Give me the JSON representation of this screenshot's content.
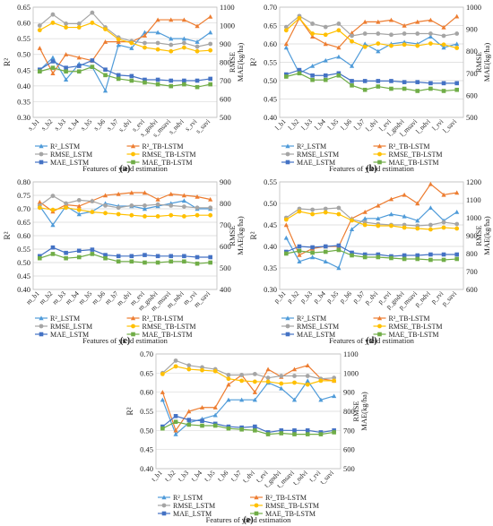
{
  "colors": {
    "R2_LSTM": "#4f9bd9",
    "R2_TB_LSTM": "#ed7d31",
    "RMSE_LSTM": "#a5a5a5",
    "RMSE_TB_LSTM": "#ffc000",
    "MAE_LSTM": "#4472c4",
    "MAE_TB_LSTM": "#70ad47"
  },
  "chart_data": [
    {
      "panel": "(a)",
      "type": "line",
      "xlabel": "Features of yield estimation",
      "ylabel_left": "R²",
      "ylabel_right": "RMSE MAE(kg/ha)",
      "ylim_left": [
        0.3,
        0.65
      ],
      "ylim_right": [
        500,
        1100
      ],
      "categories": [
        "s_b1",
        "s_b2",
        "s_b3",
        "s_b4",
        "s_b5",
        "s_b6",
        "s_b7",
        "s_dvi",
        "s_evi",
        "s_gndvi",
        "s_msavi",
        "s_ndvi",
        "s_rvi",
        "s_savi"
      ],
      "legend": [
        [
          "R²_LSTM",
          "R²_TB-LSTM"
        ],
        [
          "RMSE_LSTM",
          "RMSE_TB-LSTM"
        ],
        [
          "MAE_LSTM",
          "MAE_TB-LSTM"
        ]
      ],
      "series": [
        {
          "name": "R²_LSTM",
          "axis": "left",
          "values": [
            0.45,
            0.49,
            0.42,
            0.47,
            0.46,
            0.385,
            0.53,
            0.52,
            0.57,
            0.57,
            0.55,
            0.55,
            0.54,
            0.57
          ]
        },
        {
          "name": "R²_TB-LSTM",
          "axis": "left",
          "values": [
            0.52,
            0.44,
            0.5,
            0.49,
            0.48,
            0.54,
            0.54,
            0.54,
            0.56,
            0.61,
            0.61,
            0.61,
            0.59,
            0.62
          ]
        },
        {
          "name": "RMSE_LSTM",
          "axis": "right",
          "values": [
            1000,
            1060,
            1010,
            1010,
            1070,
            990,
            935,
            915,
            905,
            905,
            895,
            905,
            885,
            900
          ]
        },
        {
          "name": "RMSE_TB-LSTM",
          "axis": "right",
          "values": [
            975,
            1015,
            990,
            990,
            1015,
            980,
            925,
            905,
            880,
            870,
            860,
            880,
            860,
            865
          ]
        },
        {
          "name": "MAE_LSTM",
          "axis": "right",
          "values": [
            760,
            805,
            770,
            780,
            810,
            760,
            730,
            725,
            705,
            705,
            700,
            700,
            700,
            710
          ]
        },
        {
          "name": "MAE_TB-LSTM",
          "axis": "right",
          "values": [
            750,
            770,
            750,
            750,
            775,
            730,
            710,
            700,
            690,
            680,
            670,
            680,
            665,
            680
          ]
        }
      ]
    },
    {
      "panel": "(b)",
      "type": "line",
      "xlabel": "Features of yield estimation",
      "ylabel_left": "R²",
      "ylabel_right": "RMSE MAE(kg/ha)",
      "ylim_left": [
        0.4,
        0.7
      ],
      "ylim_right": [
        500,
        1000
      ],
      "categories": [
        "l_b1",
        "l_b2",
        "l_b3",
        "l_b4",
        "l_b5",
        "l_b6",
        "l_b7",
        "l_dvi",
        "l_evi",
        "l_gndvi",
        "l_msavi",
        "l_ndvi",
        "l_rvi",
        "l_savi"
      ],
      "legend": [
        [
          "R²_LSTM",
          "R²_TB-LSTM"
        ],
        [
          "RMSE_LSTM",
          "RMSE_TB-LSTM"
        ],
        [
          "MAE_LSTM",
          "MAE_TB-LSTM"
        ]
      ],
      "series": [
        {
          "name": "R²_LSTM",
          "axis": "left",
          "values": [
            0.59,
            0.52,
            0.54,
            0.555,
            0.565,
            0.54,
            0.6,
            0.58,
            0.6,
            0.605,
            0.6,
            0.62,
            0.59,
            0.6
          ]
        },
        {
          "name": "R²_TB-LSTM",
          "axis": "left",
          "values": [
            0.6,
            0.67,
            0.62,
            0.6,
            0.59,
            0.63,
            0.66,
            0.66,
            0.665,
            0.65,
            0.66,
            0.665,
            0.645,
            0.675
          ]
        },
        {
          "name": "RMSE_LSTM",
          "axis": "right",
          "values": [
            910,
            960,
            925,
            910,
            925,
            870,
            880,
            880,
            875,
            880,
            880,
            880,
            870,
            880
          ]
        },
        {
          "name": "RMSE_TB-LSTM",
          "axis": "right",
          "values": [
            895,
            950,
            880,
            875,
            895,
            845,
            820,
            835,
            825,
            830,
            825,
            835,
            830,
            815
          ]
        },
        {
          "name": "MAE_LSTM",
          "axis": "right",
          "values": [
            695,
            715,
            690,
            690,
            700,
            665,
            665,
            665,
            665,
            660,
            660,
            655,
            655,
            655
          ]
        },
        {
          "name": "MAE_TB-LSTM",
          "axis": "right",
          "values": [
            685,
            700,
            670,
            670,
            690,
            645,
            625,
            640,
            630,
            630,
            620,
            630,
            620,
            625
          ]
        }
      ]
    },
    {
      "panel": "(c)",
      "type": "line",
      "xlabel": "Features of yield estimation",
      "ylabel_left": "R²",
      "ylabel_right": "RMSE MAE(kg/ha)",
      "ylim_left": [
        0.4,
        0.8
      ],
      "ylim_right": [
        400,
        900
      ],
      "categories": [
        "m_b1",
        "m_b2",
        "m_b3",
        "m_b4",
        "m_b5",
        "m_b6",
        "m_b7",
        "m_dvi",
        "m_evi",
        "m_gndvi",
        "m_msavi",
        "m_ndvi",
        "m_rvi",
        "m_savi"
      ],
      "legend": [
        [
          "R²_LSTM",
          "R²_TB-LSTM"
        ],
        [
          "RMSE_LSTM",
          "RMSE_TB-LSTM"
        ],
        [
          "MAE_LSTM",
          "MAE_TB-LSTM"
        ]
      ],
      "series": [
        {
          "name": "R²_LSTM",
          "axis": "left",
          "values": [
            0.71,
            0.64,
            0.71,
            0.68,
            0.69,
            0.72,
            0.71,
            0.71,
            0.7,
            0.71,
            0.72,
            0.73,
            0.7,
            0.7
          ]
        },
        {
          "name": "R²_TB-LSTM",
          "axis": "left",
          "values": [
            0.725,
            0.69,
            0.715,
            0.71,
            0.73,
            0.75,
            0.755,
            0.76,
            0.76,
            0.735,
            0.755,
            0.75,
            0.745,
            0.735
          ]
        },
        {
          "name": "RMSE_LSTM",
          "axis": "right",
          "values": [
            790,
            835,
            800,
            815,
            810,
            790,
            780,
            790,
            790,
            795,
            790,
            785,
            780,
            780
          ]
        },
        {
          "name": "RMSE_TB-LSTM",
          "axis": "right",
          "values": [
            780,
            770,
            780,
            770,
            760,
            755,
            750,
            745,
            740,
            740,
            745,
            740,
            745,
            745
          ]
        },
        {
          "name": "MAE_LSTM",
          "axis": "right",
          "values": [
            555,
            595,
            570,
            580,
            585,
            560,
            555,
            555,
            560,
            555,
            555,
            555,
            550,
            550
          ]
        },
        {
          "name": "MAE_TB-LSTM",
          "axis": "right",
          "values": [
            545,
            565,
            545,
            550,
            565,
            545,
            530,
            530,
            525,
            525,
            530,
            530,
            520,
            525
          ]
        }
      ]
    },
    {
      "panel": "(d)",
      "type": "line",
      "xlabel": "Features of yield estimation",
      "ylabel_left": "R²",
      "ylabel_right": "RMSE MAE(kg/ha)",
      "ylim_left": [
        0.3,
        0.55
      ],
      "ylim_right": [
        600,
        1200
      ],
      "categories": [
        "p_b1",
        "p_b2",
        "p_b3",
        "p_b4",
        "p_b5",
        "p_b6",
        "p_b7",
        "p_dvi",
        "p_evi",
        "p_gndvi",
        "p_msavi",
        "p_ndvi",
        "p_rvi",
        "p_savi"
      ],
      "legend": [
        [
          "R²_LSTM",
          "R²_TB-LSTM"
        ],
        [
          "RMSE_LSTM",
          "RMSE_TB-LSTM"
        ],
        [
          "MAE_LSTM",
          "MAE_TB-LSTM"
        ]
      ],
      "series": [
        {
          "name": "R²_LSTM",
          "axis": "left",
          "values": [
            0.42,
            0.365,
            0.375,
            0.365,
            0.35,
            0.44,
            0.465,
            0.465,
            0.475,
            0.47,
            0.46,
            0.49,
            0.46,
            0.48
          ]
        },
        {
          "name": "R²_TB-LSTM",
          "axis": "left",
          "values": [
            0.45,
            0.38,
            0.395,
            0.4,
            0.4,
            0.465,
            0.48,
            0.495,
            0.51,
            0.52,
            0.5,
            0.545,
            0.52,
            0.525
          ]
        },
        {
          "name": "RMSE_LSTM",
          "axis": "right",
          "values": [
            1000,
            1050,
            1045,
            1050,
            1055,
            990,
            975,
            965,
            960,
            960,
            955,
            960,
            975,
            965
          ]
        },
        {
          "name": "RMSE_TB-LSTM",
          "axis": "right",
          "values": [
            990,
            1035,
            1020,
            1030,
            1020,
            985,
            960,
            955,
            955,
            945,
            940,
            935,
            945,
            940
          ]
        },
        {
          "name": "MAE_LSTM",
          "axis": "right",
          "values": [
            810,
            840,
            835,
            840,
            845,
            805,
            795,
            795,
            785,
            790,
            790,
            795,
            795,
            795
          ]
        },
        {
          "name": "MAE_TB-LSTM",
          "axis": "right",
          "values": [
            800,
            815,
            805,
            810,
            820,
            790,
            780,
            780,
            775,
            770,
            770,
            765,
            765,
            770
          ]
        }
      ]
    },
    {
      "panel": "(e)",
      "type": "line",
      "xlabel": "Features of yield estimation",
      "ylabel_left": "R²",
      "ylabel_right": "RMSE MAE(kg/ha)",
      "ylim_left": [
        0.4,
        0.7
      ],
      "ylim_right": [
        500,
        1100
      ],
      "categories": [
        "t_b1",
        "t_b2",
        "t_b3",
        "t_b4",
        "t_b5",
        "t_b6",
        "t_b7",
        "t_dvi",
        "t_evi",
        "t_gndvi",
        "t_msavi",
        "t_ndvi",
        "t_rvi",
        "t_savi"
      ],
      "legend": [
        [
          "R²_LSTM",
          "R²_TB-LSTM"
        ],
        [
          "RMSE_LSTM",
          "RMSE_TB-LSTM"
        ],
        [
          "MAE_LSTM",
          "MAE_TB-LSTM"
        ]
      ],
      "series": [
        {
          "name": "R²_LSTM",
          "axis": "left",
          "values": [
            0.58,
            0.49,
            0.52,
            0.53,
            0.54,
            0.58,
            0.58,
            0.58,
            0.625,
            0.61,
            0.58,
            0.63,
            0.58,
            0.59
          ]
        },
        {
          "name": "R²_TB-LSTM",
          "axis": "left",
          "values": [
            0.6,
            0.5,
            0.55,
            0.56,
            0.56,
            0.62,
            0.645,
            0.6,
            0.66,
            0.64,
            0.66,
            0.67,
            0.635,
            0.63
          ]
        },
        {
          "name": "RMSE_LSTM",
          "axis": "right",
          "values": [
            1000,
            1065,
            1040,
            1030,
            1020,
            990,
            990,
            995,
            975,
            985,
            985,
            985,
            970,
            975
          ]
        },
        {
          "name": "RMSE_TB-LSTM",
          "axis": "right",
          "values": [
            995,
            1035,
            1020,
            1015,
            1010,
            970,
            960,
            955,
            955,
            945,
            950,
            940,
            960,
            960
          ]
        },
        {
          "name": "MAE_LSTM",
          "axis": "right",
          "values": [
            720,
            775,
            755,
            750,
            735,
            720,
            715,
            720,
            690,
            700,
            700,
            700,
            690,
            700
          ]
        },
        {
          "name": "MAE_TB-LSTM",
          "axis": "right",
          "values": [
            710,
            745,
            730,
            725,
            725,
            710,
            705,
            700,
            680,
            685,
            680,
            680,
            680,
            690
          ]
        }
      ]
    }
  ]
}
